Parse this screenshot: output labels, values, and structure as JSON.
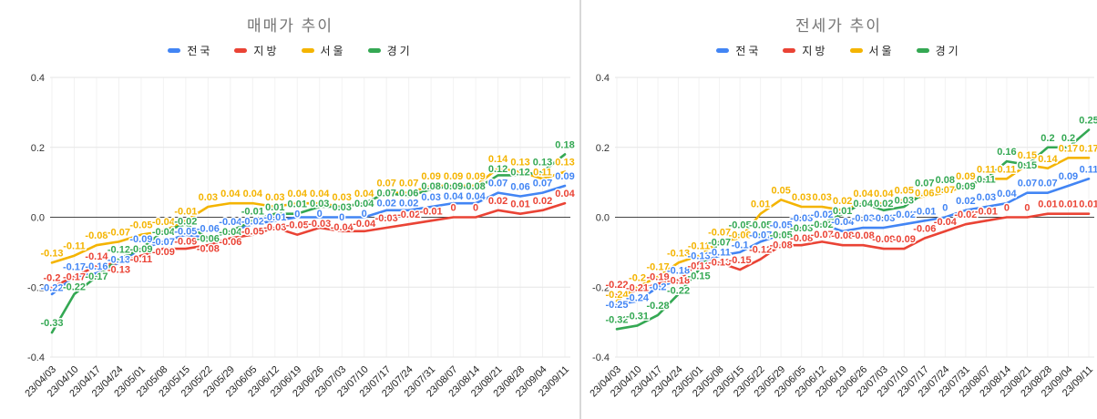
{
  "page": {
    "background": "#ffffff",
    "divider_color": "#d8d8d8"
  },
  "colors": {
    "nationwide": "#4285F4",
    "regional": "#EA4335",
    "seoul": "#F4B400",
    "gyeonggi": "#34A853"
  },
  "chart_data": [
    {
      "type": "line",
      "title": "매매가 추이",
      "legend_position": "top",
      "grid": true,
      "ylim": [
        -0.4,
        0.4
      ],
      "y_ticks": [
        "0.4",
        "0.2",
        "0.0",
        "-0.2",
        "-0.4"
      ],
      "categories": [
        "23/04/03",
        "23/04/10",
        "23/04/17",
        "23/04/24",
        "23/05/01",
        "23/05/08",
        "23/05/15",
        "23/05/22",
        "23/05/29",
        "23/06/05",
        "23/06/12",
        "23/06/19",
        "23/06/26",
        "23/07/03",
        "23/07/10",
        "23/07/17",
        "23/07/24",
        "23/07/31",
        "23/08/07",
        "23/08/14",
        "23/08/21",
        "23/08/28",
        "23/09/04",
        "23/09/11"
      ],
      "series": [
        {
          "name": "전국",
          "key": "nationwide",
          "color": "#4285F4",
          "values": [
            -0.22,
            -0.17,
            -0.16,
            -0.13,
            -0.09,
            -0.07,
            -0.05,
            -0.06,
            -0.04,
            -0.02,
            -0.01,
            0,
            0,
            0,
            0,
            0.02,
            0.02,
            0.03,
            0.04,
            0.04,
            0.07,
            0.06,
            0.07,
            0.09
          ]
        },
        {
          "name": "지방",
          "key": "regional",
          "color": "#EA4335",
          "values": [
            -0.2,
            -0.17,
            -0.14,
            -0.13,
            -0.11,
            -0.09,
            -0.09,
            -0.08,
            -0.06,
            -0.05,
            -0.03,
            -0.05,
            -0.03,
            -0.04,
            -0.04,
            -0.03,
            -0.02,
            -0.01,
            0,
            0,
            0.02,
            0.01,
            0.02,
            0.04
          ]
        },
        {
          "name": "서울",
          "key": "seoul",
          "color": "#F4B400",
          "values": [
            -0.13,
            -0.11,
            -0.08,
            -0.07,
            -0.05,
            -0.04,
            -0.01,
            0.03,
            0.04,
            0.04,
            0.03,
            0.04,
            0.04,
            0.03,
            0.04,
            0.07,
            0.07,
            0.09,
            0.09,
            0.09,
            0.14,
            0.13,
            0.11,
            0.13
          ]
        },
        {
          "name": "경기",
          "key": "gyeonggi",
          "color": "#34A853",
          "values": [
            -0.33,
            -0.22,
            -0.17,
            -0.12,
            -0.09,
            -0.04,
            -0.02,
            -0.06,
            -0.04,
            -0.01,
            0.01,
            0.01,
            0.03,
            0.03,
            0.04,
            0.07,
            0.06,
            0.08,
            0.09,
            0.08,
            0.12,
            0.12,
            0.13,
            0.18
          ]
        }
      ]
    },
    {
      "type": "line",
      "title": "전세가 추이",
      "legend_position": "top",
      "grid": true,
      "ylim": [
        -0.4,
        0.4
      ],
      "y_ticks": [
        "0.4",
        "0.2",
        "0.0",
        "-0.2",
        "-0.4"
      ],
      "categories": [
        "23/04/03",
        "23/04/10",
        "23/04/17",
        "23/04/24",
        "23/05/01",
        "23/05/08",
        "23/05/15",
        "23/05/22",
        "23/05/29",
        "23/06/05",
        "23/06/12",
        "23/06/19",
        "23/06/26",
        "23/07/03",
        "23/07/10",
        "23/07/17",
        "23/07/24",
        "23/07/31",
        "23/08/07",
        "23/08/14",
        "23/08/21",
        "23/08/28",
        "23/09/04",
        "23/09/11"
      ],
      "series": [
        {
          "name": "전국",
          "key": "nationwide",
          "color": "#4285F4",
          "values": [
            -0.25,
            -0.24,
            -0.2,
            -0.18,
            -0.13,
            -0.11,
            -0.1,
            -0.07,
            -0.05,
            -0.03,
            -0.02,
            -0.04,
            -0.03,
            -0.03,
            -0.02,
            -0.01,
            0,
            0.02,
            0.03,
            0.04,
            0.07,
            0.07,
            0.09,
            0.11
          ]
        },
        {
          "name": "지방",
          "key": "regional",
          "color": "#EA4335",
          "values": [
            -0.22,
            -0.21,
            -0.19,
            -0.18,
            -0.13,
            -0.13,
            -0.15,
            -0.12,
            -0.08,
            -0.08,
            -0.07,
            -0.08,
            -0.08,
            -0.09,
            -0.09,
            -0.06,
            -0.04,
            -0.02,
            -0.01,
            0,
            0,
            0.01,
            0.01,
            0.01
          ]
        },
        {
          "name": "서울",
          "key": "seoul",
          "color": "#F4B400",
          "values": [
            -0.24,
            -0.2,
            -0.17,
            -0.13,
            -0.11,
            -0.07,
            -0.06,
            0.01,
            0.05,
            0.03,
            0.03,
            0.02,
            0.04,
            0.04,
            0.05,
            0.06,
            0.07,
            0.09,
            0.11,
            0.11,
            0.15,
            0.14,
            0.17,
            0.17
          ]
        },
        {
          "name": "경기",
          "key": "gyeonggi",
          "color": "#34A853",
          "values": [
            -0.32,
            -0.31,
            -0.28,
            -0.22,
            -0.15,
            -0.07,
            -0.05,
            -0.05,
            -0.05,
            -0.03,
            -0.02,
            0.01,
            0.04,
            0.02,
            0.03,
            0.07,
            0.08,
            0.09,
            0.11,
            0.16,
            0.15,
            0.2,
            0.2,
            0.25
          ]
        }
      ]
    }
  ]
}
